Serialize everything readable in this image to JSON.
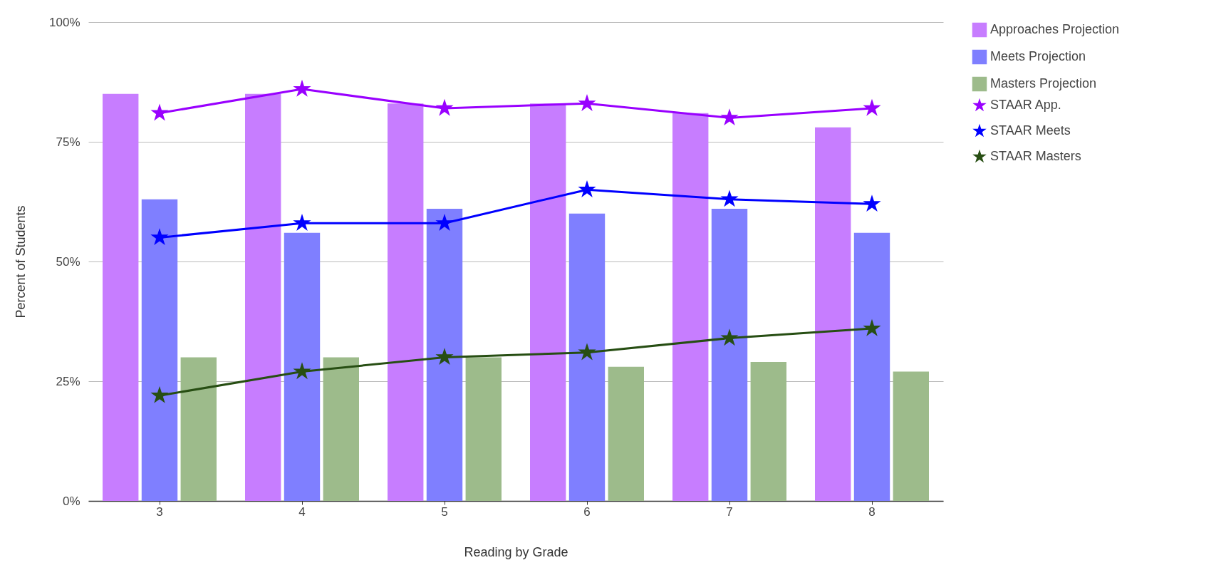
{
  "chart_data": {
    "type": "bar",
    "xlabel": "Reading by Grade",
    "ylabel": "Percent of Students",
    "categories": [
      "3",
      "4",
      "5",
      "6",
      "7",
      "8"
    ],
    "ylim": [
      0,
      100
    ],
    "yticks": [
      {
        "value": 0,
        "label": "0%"
      },
      {
        "value": 25,
        "label": "25%"
      },
      {
        "value": 50,
        "label": "50%"
      },
      {
        "value": 75,
        "label": "75%"
      },
      {
        "value": 100,
        "label": "100%"
      }
    ],
    "grid": "y",
    "legend": "right",
    "marker": "star",
    "line_style": "solid",
    "series": [
      {
        "name": "Approaches Projection",
        "color": "#c77dff",
        "values": [
          85,
          85,
          83,
          83,
          81,
          78
        ]
      },
      {
        "name": "Meets Projection",
        "color": "#7f7fff",
        "values": [
          63,
          56,
          61,
          60,
          61,
          56
        ]
      },
      {
        "name": "Masters Projection",
        "color": "#9dbb8b",
        "values": [
          30,
          30,
          30,
          28,
          29,
          27
        ]
      },
      {
        "name": "STAAR App.",
        "type": "line",
        "color": "#9900ff",
        "values": [
          81,
          86,
          82,
          83,
          80,
          82
        ]
      },
      {
        "name": "STAAR Meets",
        "type": "line",
        "color": "#0000ff",
        "values": [
          55,
          58,
          58,
          65,
          63,
          62
        ]
      },
      {
        "name": "STAAR Masters",
        "type": "line",
        "color": "#274e13",
        "values": [
          22,
          27,
          30,
          31,
          34,
          36
        ]
      }
    ]
  }
}
